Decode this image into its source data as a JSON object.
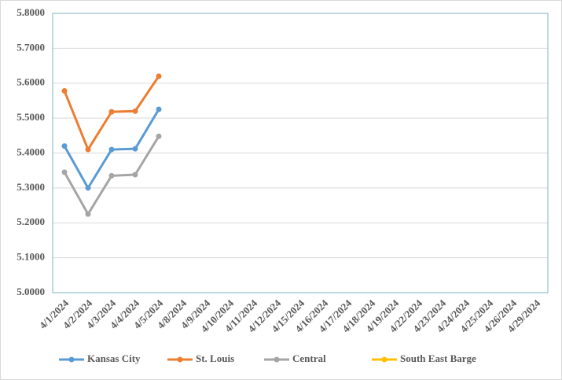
{
  "chart_data": {
    "type": "line",
    "categories": [
      "4/1/2024",
      "4/2/2024",
      "4/3/2024",
      "4/4/2024",
      "4/5/2024",
      "4/8/2024",
      "4/9/2024",
      "4/10/2024",
      "4/11/2024",
      "4/12/2024",
      "4/15/2024",
      "4/16/2024",
      "4/17/2024",
      "4/18/2024",
      "4/19/2024",
      "4/22/2024",
      "4/23/2024",
      "4/24/2024",
      "4/25/2024",
      "4/26/2024",
      "4/29/2024"
    ],
    "series": [
      {
        "name": "Kansas City",
        "color": "#5b9bd5",
        "values": [
          5.42,
          5.3,
          5.41,
          5.412,
          5.525,
          null,
          null,
          null,
          null,
          null,
          null,
          null,
          null,
          null,
          null,
          null,
          null,
          null,
          null,
          null,
          null
        ]
      },
      {
        "name": "St. Louis",
        "color": "#ed7d31",
        "values": [
          5.578,
          5.41,
          5.518,
          5.52,
          5.62,
          null,
          null,
          null,
          null,
          null,
          null,
          null,
          null,
          null,
          null,
          null,
          null,
          null,
          null,
          null,
          null
        ]
      },
      {
        "name": "Central",
        "color": "#a5a5a5",
        "values": [
          5.345,
          5.225,
          5.335,
          5.338,
          5.448,
          null,
          null,
          null,
          null,
          null,
          null,
          null,
          null,
          null,
          null,
          null,
          null,
          null,
          null,
          null,
          null
        ]
      },
      {
        "name": "South East Barge",
        "color": "#ffc000",
        "values": [
          null,
          null,
          null,
          null,
          null,
          null,
          null,
          null,
          null,
          null,
          null,
          null,
          null,
          null,
          null,
          null,
          null,
          null,
          null,
          null,
          null
        ]
      }
    ],
    "ylim": [
      5.0,
      5.8
    ],
    "yticks": [
      {
        "value": 5.0,
        "label": "5.0000"
      },
      {
        "value": 5.1,
        "label": "5.1000"
      },
      {
        "value": 5.2,
        "label": "5.2000"
      },
      {
        "value": 5.3,
        "label": "5.3000"
      },
      {
        "value": 5.4,
        "label": "5.4000"
      },
      {
        "value": 5.5,
        "label": "5.5000"
      },
      {
        "value": 5.6,
        "label": "5.6000"
      },
      {
        "value": 5.7,
        "label": "5.7000"
      },
      {
        "value": 5.8,
        "label": "5.8000"
      }
    ],
    "grid": true
  }
}
